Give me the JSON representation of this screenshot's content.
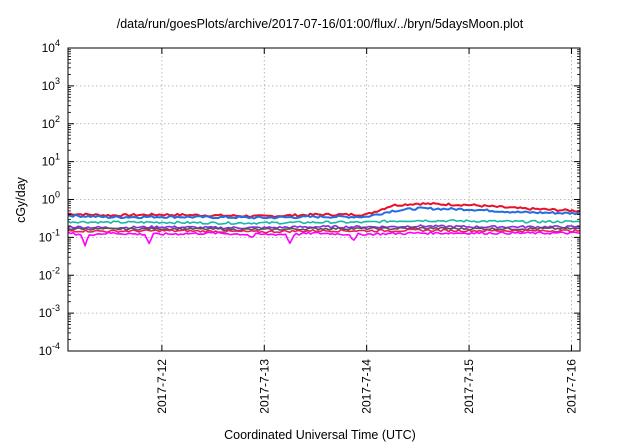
{
  "chart_data": {
    "type": "line",
    "title": "/data/run/goesPlots/archive/2017-07-16/01:00/flux/../bryn/5daysMoon.plot",
    "xlabel": "Coordinated Universal Time (UTC)",
    "ylabel": "cGy/day",
    "x_scale": "time",
    "x_range": [
      "2017-07-11T02:00",
      "2017-07-16T02:00"
    ],
    "y_scale": "log",
    "ylim": [
      0.0001,
      10000
    ],
    "grid": true,
    "xticks": [
      "2017-7-12",
      "2017-7-13",
      "2017-7-14",
      "2017-7-15",
      "2017-7-16"
    ],
    "yticks": [
      {
        "base": "10",
        "exp": "4"
      },
      {
        "base": "10",
        "exp": "3"
      },
      {
        "base": "10",
        "exp": "2"
      },
      {
        "base": "10",
        "exp": "1"
      },
      {
        "base": "10",
        "exp": "0"
      },
      {
        "base": "10",
        "exp": "-1"
      },
      {
        "base": "10",
        "exp": "-2"
      },
      {
        "base": "10",
        "exp": "-3"
      },
      {
        "base": "10",
        "exp": "-4"
      }
    ],
    "series": [
      {
        "color": "#e8102a",
        "x": [
          "2017-07-11T02:00",
          "2017-07-11T12:00",
          "2017-07-12T00:00",
          "2017-07-12T12:00",
          "2017-07-13T00:00",
          "2017-07-13T12:00",
          "2017-07-14T00:00",
          "2017-07-14T06:00",
          "2017-07-14T12:00",
          "2017-07-15T00:00",
          "2017-07-15T12:00",
          "2017-07-16T02:00"
        ],
        "y": [
          0.42,
          0.38,
          0.4,
          0.38,
          0.36,
          0.4,
          0.4,
          0.7,
          0.78,
          0.72,
          0.58,
          0.5
        ]
      },
      {
        "color": "#1f6fe0",
        "x": [
          "2017-07-11T02:00",
          "2017-07-11T12:00",
          "2017-07-12T00:00",
          "2017-07-12T12:00",
          "2017-07-13T00:00",
          "2017-07-13T12:00",
          "2017-07-14T00:00",
          "2017-07-14T06:00",
          "2017-07-14T12:00",
          "2017-07-15T00:00",
          "2017-07-15T12:00",
          "2017-07-16T02:00"
        ],
        "y": [
          0.38,
          0.34,
          0.35,
          0.34,
          0.33,
          0.35,
          0.35,
          0.5,
          0.58,
          0.55,
          0.46,
          0.43
        ]
      },
      {
        "color": "#18b8a8",
        "x": [
          "2017-07-11T02:00",
          "2017-07-11T12:00",
          "2017-07-12T00:00",
          "2017-07-12T12:00",
          "2017-07-13T00:00",
          "2017-07-13T12:00",
          "2017-07-14T00:00",
          "2017-07-14T06:00",
          "2017-07-14T12:00",
          "2017-07-15T00:00",
          "2017-07-15T12:00",
          "2017-07-16T02:00"
        ],
        "y": [
          0.26,
          0.25,
          0.25,
          0.24,
          0.24,
          0.25,
          0.25,
          0.27,
          0.28,
          0.27,
          0.26,
          0.26
        ]
      },
      {
        "color": "#8a2be2",
        "x": [
          "2017-07-11T02:00",
          "2017-07-11T12:00",
          "2017-07-12T00:00",
          "2017-07-12T12:00",
          "2017-07-13T00:00",
          "2017-07-13T12:00",
          "2017-07-14T00:00",
          "2017-07-14T06:00",
          "2017-07-14T12:00",
          "2017-07-15T00:00",
          "2017-07-15T12:00",
          "2017-07-16T02:00"
        ],
        "y": [
          0.19,
          0.18,
          0.19,
          0.18,
          0.18,
          0.19,
          0.19,
          0.19,
          0.2,
          0.19,
          0.19,
          0.19
        ]
      },
      {
        "color": "#555555",
        "x": [
          "2017-07-11T02:00",
          "2017-07-11T12:00",
          "2017-07-12T00:00",
          "2017-07-12T12:00",
          "2017-07-13T00:00",
          "2017-07-13T12:00",
          "2017-07-14T00:00",
          "2017-07-14T06:00",
          "2017-07-14T12:00",
          "2017-07-15T00:00",
          "2017-07-15T12:00",
          "2017-07-16T02:00"
        ],
        "y": [
          0.17,
          0.165,
          0.17,
          0.165,
          0.16,
          0.17,
          0.17,
          0.17,
          0.175,
          0.17,
          0.17,
          0.17
        ]
      },
      {
        "color": "#e8205a",
        "x": [
          "2017-07-11T02:00",
          "2017-07-11T12:00",
          "2017-07-12T00:00",
          "2017-07-12T12:00",
          "2017-07-13T00:00",
          "2017-07-13T12:00",
          "2017-07-14T00:00",
          "2017-07-14T06:00",
          "2017-07-14T12:00",
          "2017-07-15T00:00",
          "2017-07-15T12:00",
          "2017-07-16T02:00"
        ],
        "y": [
          0.15,
          0.145,
          0.15,
          0.145,
          0.14,
          0.15,
          0.15,
          0.15,
          0.155,
          0.15,
          0.15,
          0.15
        ]
      },
      {
        "color": "#ff00ff",
        "x": [
          "2017-07-11T02:00",
          "2017-07-11T05:00",
          "2017-07-11T06:00",
          "2017-07-11T07:00",
          "2017-07-11T12:00",
          "2017-07-11T20:00",
          "2017-07-11T21:00",
          "2017-07-11T22:00",
          "2017-07-12T12:00",
          "2017-07-12T20:00",
          "2017-07-12T21:00",
          "2017-07-12T22:00",
          "2017-07-13T05:00",
          "2017-07-13T06:00",
          "2017-07-13T07:00",
          "2017-07-13T12:00",
          "2017-07-13T20:00",
          "2017-07-13T21:00",
          "2017-07-13T22:00",
          "2017-07-14T12:00",
          "2017-07-15T00:00",
          "2017-07-15T12:00",
          "2017-07-16T02:00"
        ],
        "y": [
          0.13,
          0.12,
          0.06,
          0.12,
          0.13,
          0.12,
          0.07,
          0.12,
          0.13,
          0.12,
          0.1,
          0.12,
          0.12,
          0.07,
          0.12,
          0.13,
          0.12,
          0.08,
          0.12,
          0.13,
          0.13,
          0.13,
          0.13
        ]
      }
    ]
  }
}
